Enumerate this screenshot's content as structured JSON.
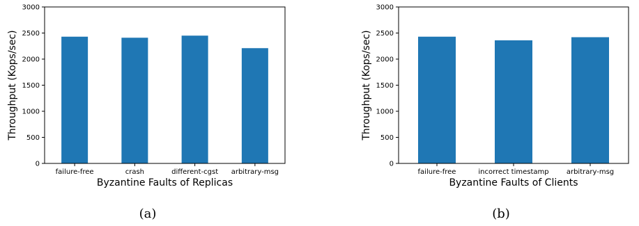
{
  "chart_data": [
    {
      "type": "bar",
      "categories": [
        "failure-free",
        "crash",
        "different-cgst",
        "arbitrary-msg"
      ],
      "values": [
        2430,
        2410,
        2450,
        2210
      ],
      "xlabel": "Byzantine Faults of Replicas",
      "ylabel": "Throughput (Kops/sec)",
      "ylim": [
        0,
        3000
      ],
      "yticks": [
        0,
        500,
        1000,
        1500,
        2000,
        2500,
        3000
      ],
      "bar_color": "#1f77b4",
      "grid": false,
      "caption": "(a)"
    },
    {
      "type": "bar",
      "categories": [
        "failure-free",
        "incorrect timestamp",
        "arbitrary-msg"
      ],
      "values": [
        2430,
        2360,
        2420
      ],
      "xlabel": "Byzantine Faults of Clients",
      "ylabel": "Throughput (Kops/sec)",
      "ylim": [
        0,
        3000
      ],
      "yticks": [
        0,
        500,
        1000,
        1500,
        2000,
        2500,
        3000
      ],
      "bar_color": "#1f77b4",
      "grid": false,
      "caption": "(b)"
    }
  ]
}
